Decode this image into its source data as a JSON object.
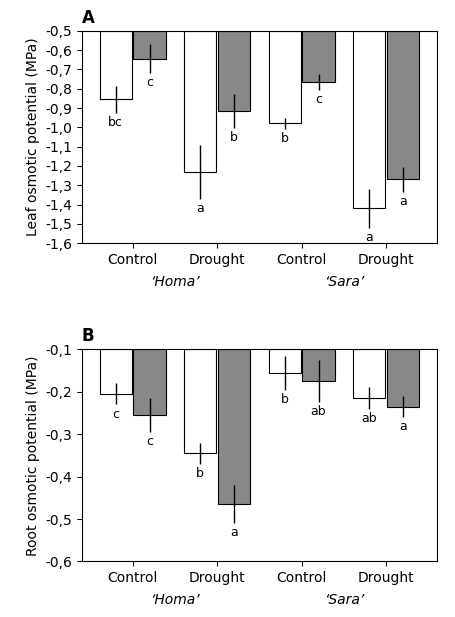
{
  "chart_data": [
    {
      "type": "bar",
      "title": "A",
      "y_label": "Leaf osmotic potential (MPa)",
      "categories": [
        "Control",
        "Drought",
        "Control",
        "Drought"
      ],
      "groups": [
        "‘Homa’",
        "‘Homa’",
        "‘Sara’",
        "‘Sara’"
      ],
      "ylim": [
        -1.6,
        -0.5
      ],
      "yticks": [
        {
          "value": -1.6,
          "label": "-1,6"
        },
        {
          "value": -1.5,
          "label": "-1,5"
        },
        {
          "value": -1.4,
          "label": "-1,4"
        },
        {
          "value": -1.3,
          "label": "-1,3"
        },
        {
          "value": -1.2,
          "label": "-1,2"
        },
        {
          "value": -1.1,
          "label": "-1,1"
        },
        {
          "value": -1.0,
          "label": "-1,0"
        },
        {
          "value": -0.9,
          "label": "-0,9"
        },
        {
          "value": -0.8,
          "label": "-0,8"
        },
        {
          "value": -0.7,
          "label": "-0,7"
        },
        {
          "value": -0.6,
          "label": "-0,6"
        },
        {
          "value": -0.5,
          "label": "-0,5"
        }
      ],
      "series": [
        {
          "color": "#ffffff",
          "values": [
            -0.855,
            -1.23,
            -0.98,
            -1.42
          ],
          "errors": [
            0.07,
            0.14,
            0.03,
            0.1
          ],
          "letters": [
            "bc",
            "a",
            "b",
            "a"
          ]
        },
        {
          "color": "#888888",
          "values": [
            -0.645,
            -0.915,
            -0.765,
            -1.27
          ],
          "errors": [
            0.075,
            0.09,
            0.04,
            0.065
          ],
          "letters": [
            "c",
            "b",
            "c",
            "a"
          ]
        }
      ]
    },
    {
      "type": "bar",
      "title": "B",
      "y_label": "Root osmotic potential (MPa)",
      "categories": [
        "Control",
        "Drought",
        "Control",
        "Drought"
      ],
      "groups": [
        "‘Homa’",
        "‘Homa’",
        "‘Sara’",
        "‘Sara’"
      ],
      "ylim": [
        -0.6,
        -0.1
      ],
      "yticks": [
        {
          "value": -0.6,
          "label": "-0,6"
        },
        {
          "value": -0.5,
          "label": "-0,5"
        },
        {
          "value": -0.4,
          "label": "-0,4"
        },
        {
          "value": -0.3,
          "label": "-0,3"
        },
        {
          "value": -0.2,
          "label": "-0,2"
        },
        {
          "value": -0.1,
          "label": "-0,1"
        }
      ],
      "series": [
        {
          "color": "#ffffff",
          "values": [
            -0.205,
            -0.345,
            -0.155,
            -0.215
          ],
          "errors": [
            0.025,
            0.025,
            0.04,
            0.025
          ],
          "letters": [
            "c",
            "b",
            "b",
            "ab"
          ]
        },
        {
          "color": "#888888",
          "values": [
            -0.255,
            -0.465,
            -0.175,
            -0.235
          ],
          "errors": [
            0.04,
            0.045,
            0.05,
            0.025
          ],
          "letters": [
            "c",
            "a",
            "ab",
            "a"
          ]
        }
      ]
    }
  ]
}
